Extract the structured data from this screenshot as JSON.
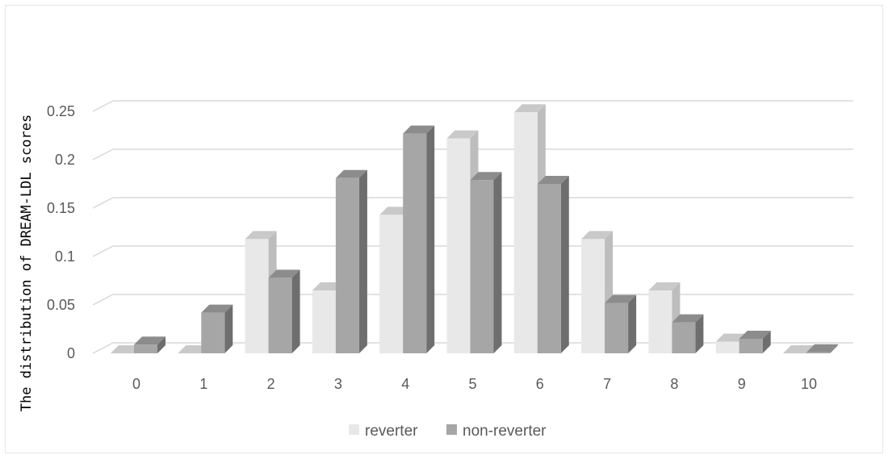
{
  "chart_data": {
    "type": "bar",
    "style": "3d-clustered-column",
    "title": "",
    "xlabel": "",
    "ylabel": "The distribution of DREAM-LDL scores",
    "categories": [
      "0",
      "1",
      "2",
      "3",
      "4",
      "5",
      "6",
      "7",
      "8",
      "9",
      "10"
    ],
    "series": [
      {
        "name": "reverter",
        "color": "#e8e8e8",
        "values": [
          0.0,
          0.0,
          0.118,
          0.065,
          0.143,
          0.222,
          0.249,
          0.118,
          0.065,
          0.012,
          0.0
        ]
      },
      {
        "name": "non-reverter",
        "color": "#a6a6a6",
        "values": [
          0.009,
          0.042,
          0.078,
          0.181,
          0.227,
          0.179,
          0.175,
          0.052,
          0.032,
          0.015,
          0.001
        ]
      }
    ],
    "yticks": [
      "0",
      "0.05",
      "0.1",
      "0.15",
      "0.2",
      "0.25"
    ],
    "ylim": [
      0,
      0.25
    ],
    "grid": true,
    "legend_position": "bottom"
  }
}
